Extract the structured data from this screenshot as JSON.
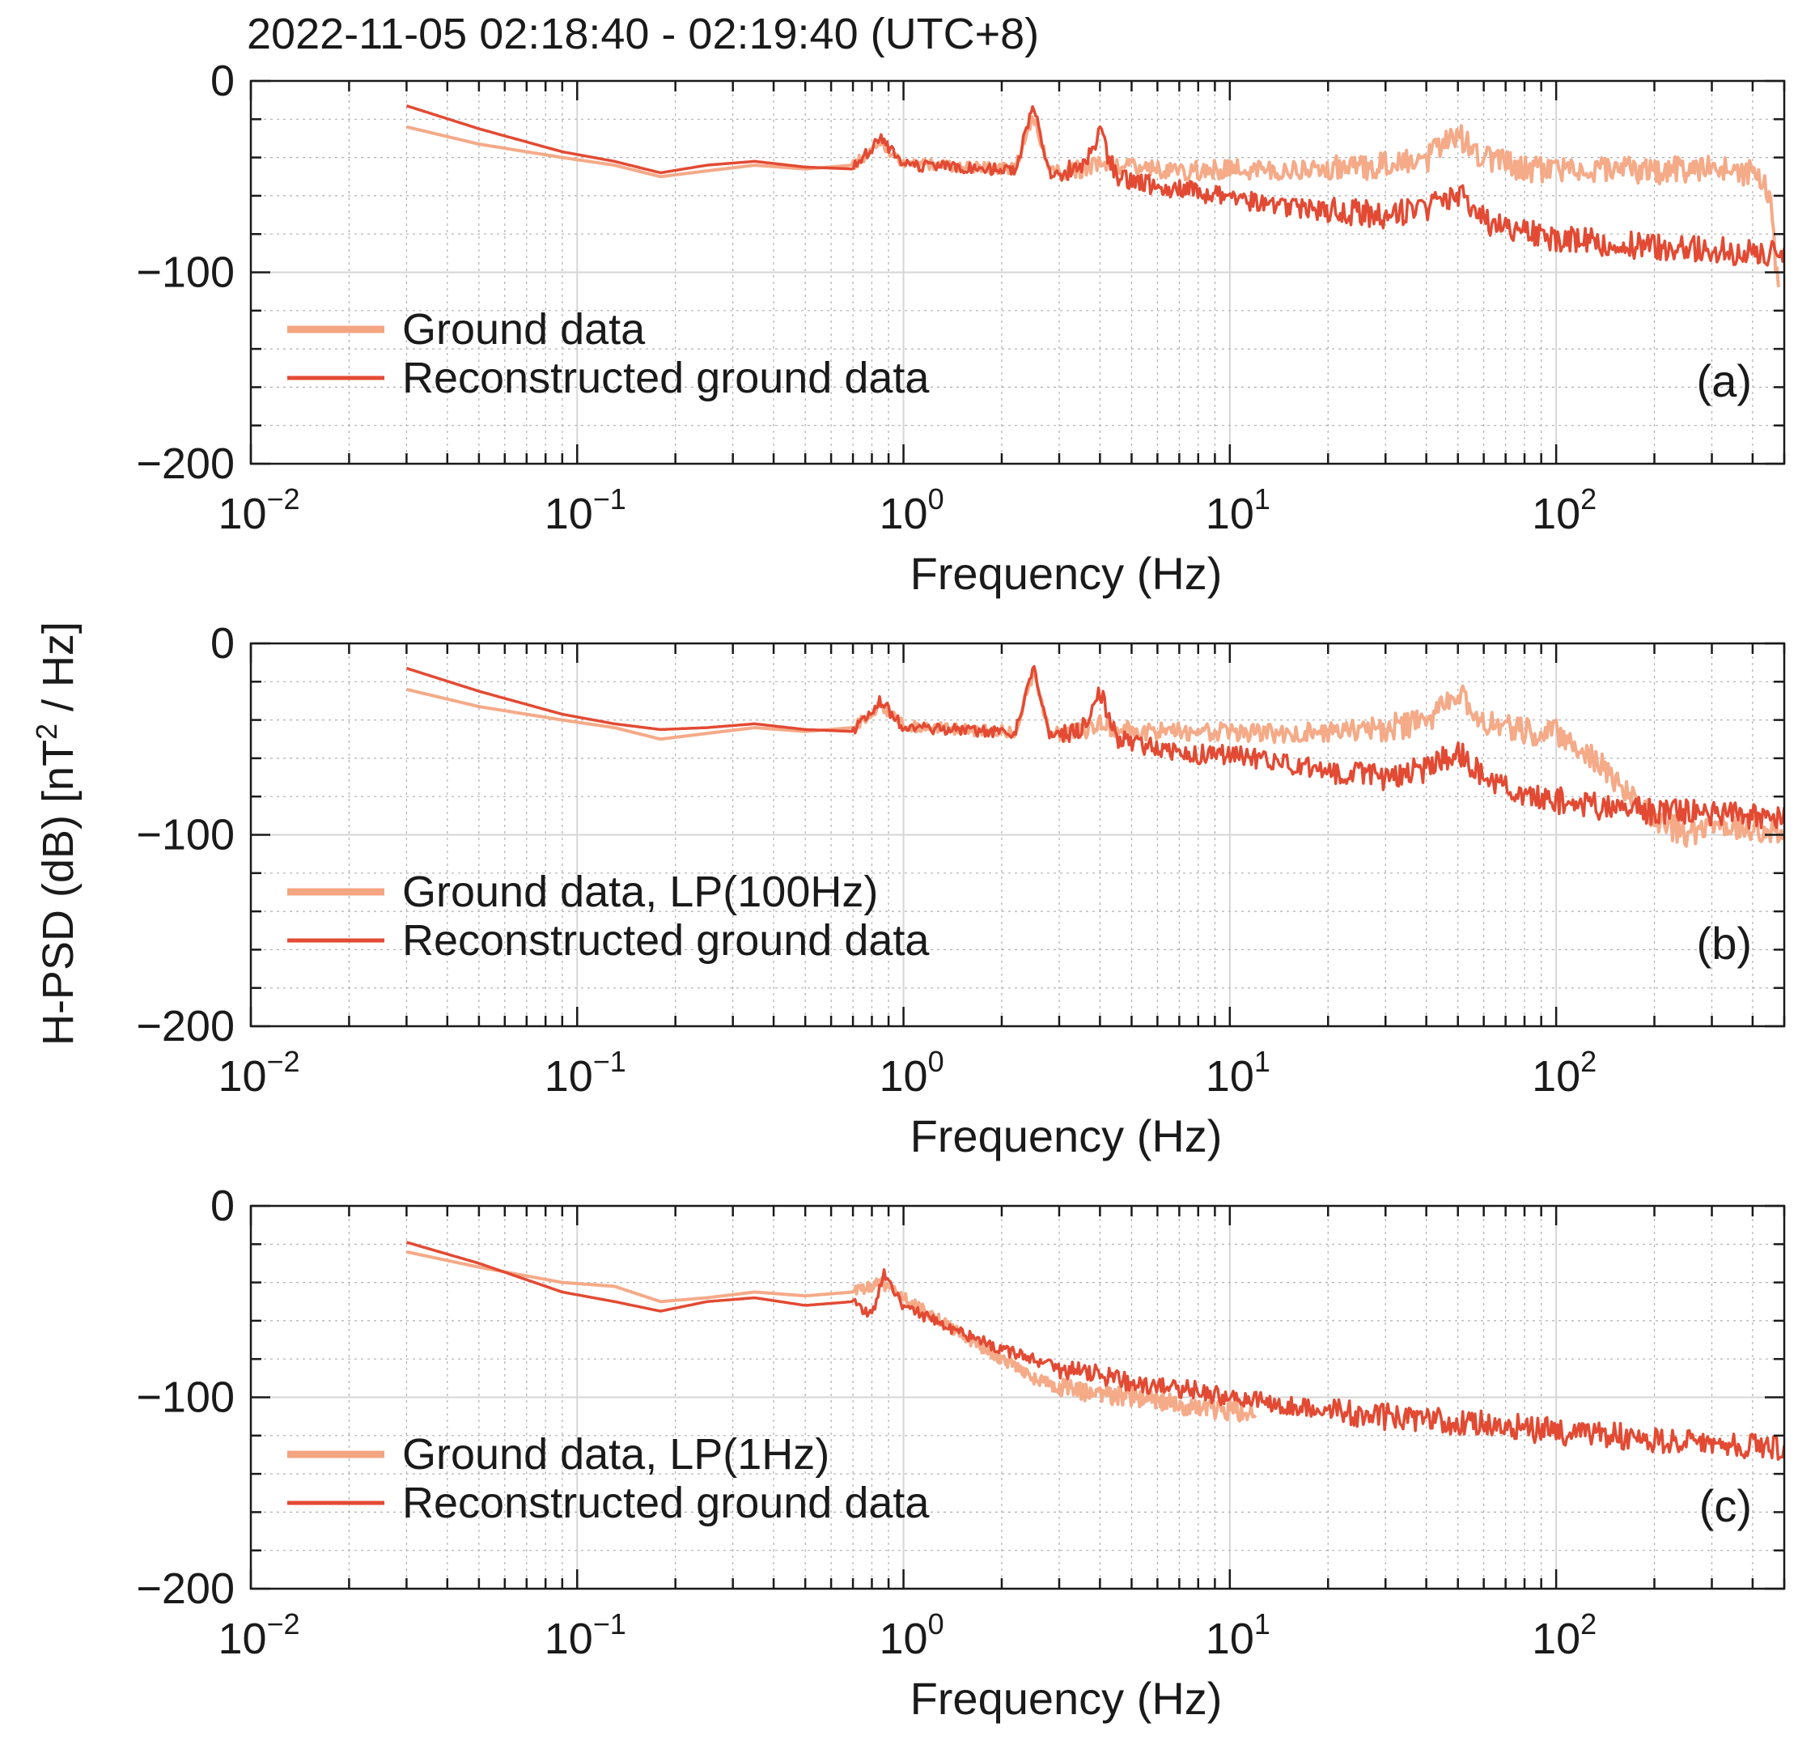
{
  "figure": {
    "title": "2022-11-05 02:18:40 - 02:19:40 (UTC+8)",
    "ylabel_prefix": "H-PSD (dB) [nT",
    "ylabel_sup": "2",
    "ylabel_suffix": " / Hz]"
  },
  "colors": {
    "ground": "#f4a582",
    "reconstructed": "#e34a33",
    "grid": "#b0b0b0",
    "axis": "#1a1a1a"
  },
  "chart_data": [
    {
      "type": "line",
      "panel": "(a)",
      "xlabel": "Frequency (Hz)",
      "ylabel": "H-PSD (dB) [nT^2 / Hz]",
      "xscale": "log",
      "xlim": [
        0.01,
        500
      ],
      "ylim": [
        -200,
        0
      ],
      "xticks": [
        0.01,
        0.1,
        1,
        10,
        100
      ],
      "xtick_base": "10",
      "xtick_exps": [
        "−2",
        "−1",
        "0",
        "1",
        "2"
      ],
      "yticks": [
        0,
        -100,
        -200
      ],
      "ytick_labels": [
        "0",
        "−100",
        "−200"
      ],
      "grid": true,
      "legend_position": "lower-left",
      "series": [
        {
          "name": "Ground data",
          "role": "ground",
          "x": [
            0.03,
            0.05,
            0.09,
            0.13,
            0.18,
            0.25,
            0.35,
            0.5,
            0.7,
            0.85,
            1,
            1.5,
            2.2,
            2.5,
            2.8,
            3.5,
            4,
            4.5,
            6,
            8,
            10,
            15,
            20,
            30,
            40,
            50,
            60,
            80,
            100,
            150,
            200,
            300,
            400,
            450,
            480
          ],
          "y": [
            -24,
            -33,
            -40,
            -44,
            -50,
            -47,
            -44,
            -46,
            -44,
            -32,
            -43,
            -45,
            -46,
            -18,
            -47,
            -46,
            -42,
            -45,
            -46,
            -47,
            -46,
            -47,
            -46,
            -44,
            -41,
            -28,
            -40,
            -46,
            -47,
            -46,
            -47,
            -46,
            -48,
            -58,
            -110
          ]
        },
        {
          "name": "Reconstructed ground data",
          "role": "reconstructed",
          "x": [
            0.03,
            0.05,
            0.09,
            0.13,
            0.18,
            0.25,
            0.35,
            0.5,
            0.7,
            0.85,
            1,
            1.5,
            2.2,
            2.5,
            2.8,
            3.5,
            4,
            4.5,
            6,
            8,
            10,
            15,
            20,
            30,
            40,
            50,
            60,
            80,
            100,
            150,
            200,
            300,
            400,
            500
          ],
          "y": [
            -13,
            -25,
            -37,
            -42,
            -48,
            -44,
            -42,
            -45,
            -46,
            -30,
            -44,
            -45,
            -47,
            -12,
            -48,
            -46,
            -28,
            -50,
            -55,
            -58,
            -61,
            -66,
            -68,
            -70,
            -67,
            -58,
            -73,
            -79,
            -82,
            -85,
            -87,
            -88,
            -90,
            -91
          ]
        }
      ]
    },
    {
      "type": "line",
      "panel": "(b)",
      "xlabel": "Frequency (Hz)",
      "ylabel": "H-PSD (dB) [nT^2 / Hz]",
      "xscale": "log",
      "xlim": [
        0.01,
        500
      ],
      "ylim": [
        -200,
        0
      ],
      "xticks": [
        0.01,
        0.1,
        1,
        10,
        100
      ],
      "xtick_base": "10",
      "xtick_exps": [
        "−2",
        "−1",
        "0",
        "1",
        "2"
      ],
      "yticks": [
        0,
        -100,
        -200
      ],
      "ytick_labels": [
        "0",
        "−100",
        "−200"
      ],
      "grid": true,
      "legend_position": "lower-left",
      "series": [
        {
          "name": "Ground data, LP(100Hz)",
          "role": "ground",
          "x": [
            0.03,
            0.05,
            0.09,
            0.13,
            0.18,
            0.25,
            0.35,
            0.5,
            0.7,
            0.85,
            1,
            1.5,
            2.2,
            2.5,
            2.8,
            3.5,
            4,
            4.5,
            6,
            8,
            10,
            15,
            20,
            30,
            40,
            50,
            60,
            80,
            100,
            120,
            150,
            200,
            250,
            300,
            400,
            500
          ],
          "y": [
            -24,
            -33,
            -40,
            -44,
            -50,
            -47,
            -44,
            -46,
            -44,
            -32,
            -43,
            -45,
            -46,
            -15,
            -47,
            -46,
            -42,
            -45,
            -46,
            -47,
            -46,
            -47,
            -46,
            -44,
            -41,
            -26,
            -40,
            -46,
            -47,
            -55,
            -70,
            -92,
            -100,
            -95,
            -97,
            -97
          ]
        },
        {
          "name": "Reconstructed ground data",
          "role": "reconstructed",
          "x": [
            0.03,
            0.05,
            0.09,
            0.13,
            0.18,
            0.25,
            0.35,
            0.5,
            0.7,
            0.85,
            1,
            1.5,
            2.2,
            2.5,
            2.8,
            3.5,
            4,
            4.5,
            6,
            8,
            10,
            15,
            20,
            30,
            40,
            50,
            60,
            80,
            100,
            150,
            200,
            300,
            400,
            500
          ],
          "y": [
            -13,
            -25,
            -37,
            -42,
            -45,
            -44,
            -42,
            -45,
            -46,
            -30,
            -44,
            -45,
            -47,
            -12,
            -48,
            -46,
            -25,
            -50,
            -55,
            -58,
            -58,
            -63,
            -66,
            -70,
            -66,
            -56,
            -71,
            -78,
            -82,
            -86,
            -88,
            -89,
            -90,
            -91
          ]
        }
      ]
    },
    {
      "type": "line",
      "panel": "(c)",
      "xlabel": "Frequency (Hz)",
      "ylabel": "H-PSD (dB) [nT^2 / Hz]",
      "xscale": "log",
      "xlim": [
        0.01,
        500
      ],
      "ylim": [
        -200,
        0
      ],
      "xticks": [
        0.01,
        0.1,
        1,
        10,
        100
      ],
      "xtick_base": "10",
      "xtick_exps": [
        "−2",
        "−1",
        "0",
        "1",
        "2"
      ],
      "yticks": [
        0,
        -100,
        -200
      ],
      "ytick_labels": [
        "0",
        "−100",
        "−200"
      ],
      "grid": true,
      "legend_position": "lower-left",
      "series": [
        {
          "name": "Ground data, LP(1Hz)",
          "role": "ground",
          "x": [
            0.03,
            0.05,
            0.09,
            0.13,
            0.18,
            0.25,
            0.35,
            0.5,
            0.7,
            0.85,
            1,
            1.3,
            1.6,
            2,
            2.5,
            3,
            4,
            5,
            7,
            10,
            12
          ],
          "y": [
            -24,
            -32,
            -40,
            -42,
            -50,
            -48,
            -45,
            -47,
            -45,
            -40,
            -48,
            -60,
            -70,
            -80,
            -90,
            -95,
            -98,
            -100,
            -104,
            -107,
            -108
          ]
        },
        {
          "name": "Reconstructed ground data",
          "role": "reconstructed",
          "x": [
            0.03,
            0.05,
            0.09,
            0.13,
            0.18,
            0.25,
            0.35,
            0.5,
            0.7,
            0.8,
            0.87,
            1,
            1.3,
            1.6,
            2,
            2.5,
            3,
            4,
            5,
            7,
            10,
            15,
            20,
            30,
            50,
            70,
            100,
            150,
            200,
            300,
            400,
            500
          ],
          "y": [
            -19,
            -30,
            -45,
            -50,
            -55,
            -50,
            -48,
            -52,
            -50,
            -58,
            -36,
            -52,
            -62,
            -68,
            -75,
            -80,
            -85,
            -88,
            -92,
            -95,
            -100,
            -104,
            -107,
            -110,
            -113,
            -115,
            -118,
            -120,
            -122,
            -124,
            -126,
            -127
          ]
        }
      ]
    }
  ]
}
